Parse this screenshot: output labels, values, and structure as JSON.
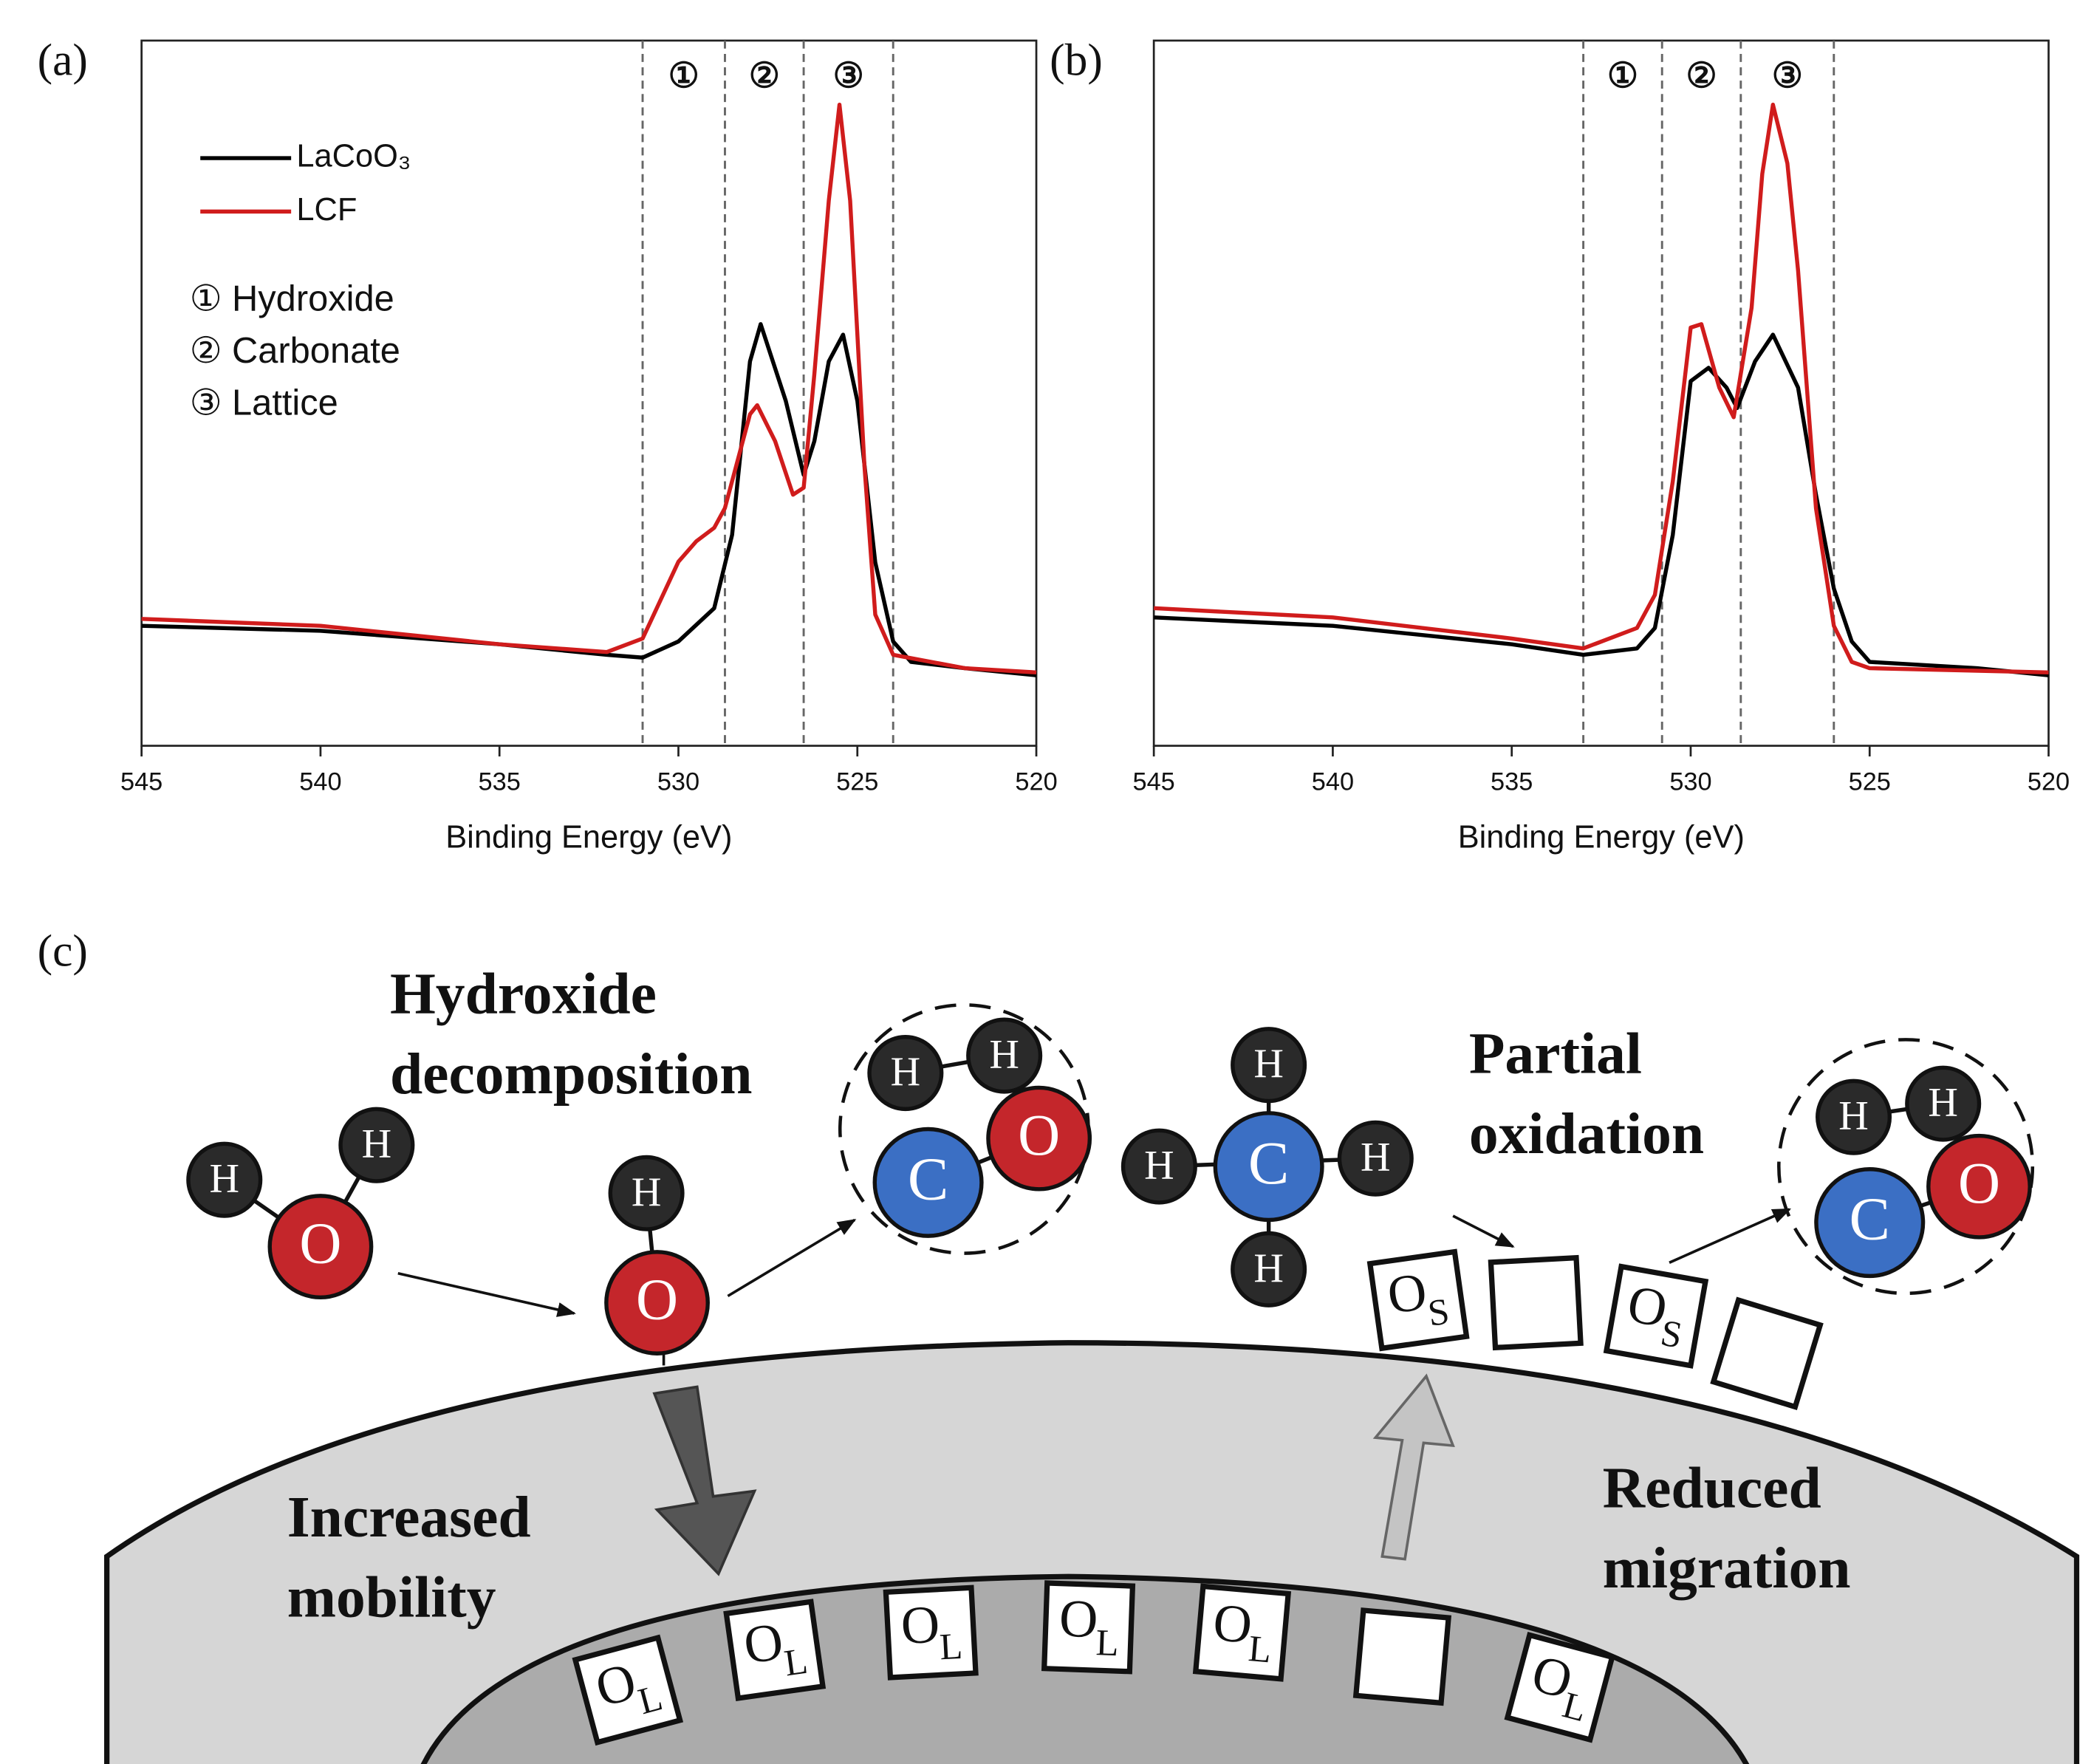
{
  "chart_data": [
    {
      "type": "line",
      "panel_label": "(a)",
      "x_label": "Binding Energy (eV)",
      "xlim": [
        545,
        520
      ],
      "xticks": [
        545,
        540,
        535,
        530,
        525,
        520
      ],
      "ylim": [
        0,
        100
      ],
      "region_lines": [
        531,
        528.7,
        526.5,
        524
      ],
      "region_labels": [
        "①",
        "②",
        "③"
      ],
      "legend_notes": [
        "① Hydroxide",
        "② Carbonate",
        "③ Lattice"
      ],
      "series": [
        {
          "name": "LaCoO₃",
          "color": "#000000",
          "x": [
            545,
            540,
            535,
            532,
            531,
            530,
            529,
            528.5,
            528,
            527.7,
            527,
            526.5,
            526.2,
            525.8,
            525.4,
            525,
            524.5,
            524,
            523.5,
            522,
            520
          ],
          "values": [
            17,
            16.3,
            14.4,
            12.9,
            12.5,
            14.8,
            19.5,
            29.9,
            54.5,
            59.8,
            48.9,
            38.4,
            43.2,
            54.5,
            58.3,
            48.9,
            26,
            14.8,
            11.9,
            11,
            10
          ]
        },
        {
          "name": "LCF",
          "color": "#d01c1c",
          "x": [
            545,
            540,
            535,
            532,
            531,
            530,
            529.5,
            529,
            528.7,
            528,
            527.8,
            527.3,
            526.8,
            526.5,
            526.2,
            525.8,
            525.5,
            525.2,
            524.8,
            524.5,
            524,
            522,
            520
          ],
          "values": [
            18,
            17,
            14.4,
            13.3,
            15.2,
            26.1,
            29,
            30.9,
            33.7,
            47,
            48.3,
            43.2,
            35.6,
            36.6,
            52.7,
            77.3,
            90.9,
            77.3,
            39.4,
            18.6,
            12.9,
            11,
            10.4
          ]
        }
      ]
    },
    {
      "type": "line",
      "panel_label": "(b)",
      "x_label": "Binding Energy (eV)",
      "xlim": [
        545,
        520
      ],
      "xticks": [
        545,
        540,
        535,
        530,
        525,
        520
      ],
      "ylim": [
        0,
        100
      ],
      "region_lines": [
        533,
        530.8,
        528.6,
        526
      ],
      "region_labels": [
        "①",
        "②",
        "③"
      ],
      "series": [
        {
          "color": "#000000",
          "x": [
            545,
            540,
            535,
            533,
            531.5,
            531,
            530.5,
            530,
            529.5,
            529,
            528.7,
            528.2,
            527.7,
            527,
            526.5,
            526,
            525.5,
            525,
            522,
            520
          ],
          "values": [
            18.2,
            17,
            14.4,
            12.9,
            13.8,
            16.7,
            29.9,
            51.7,
            53.6,
            50.8,
            47.9,
            54.5,
            58.3,
            50.8,
            35.6,
            22.3,
            14.8,
            11.9,
            11,
            10
          ]
        },
        {
          "color": "#d01c1c",
          "x": [
            545,
            540,
            535,
            533,
            531.5,
            531,
            530.5,
            530,
            529.7,
            529.2,
            528.8,
            528.3,
            528,
            527.7,
            527.3,
            527,
            526.5,
            526,
            525.5,
            525,
            520
          ],
          "values": [
            19.5,
            18.2,
            15.2,
            13.8,
            16.7,
            21.4,
            37.5,
            59.3,
            59.8,
            50.8,
            46.6,
            62.1,
            81.1,
            90.9,
            82.6,
            67.4,
            33.7,
            17,
            11.9,
            11,
            10.4
          ]
        }
      ]
    }
  ],
  "diagram": {
    "panel_label": "(c)",
    "hydroxide_decomposition": [
      "Hydroxide",
      "decomposition"
    ],
    "partial_oxidation": [
      "Partial",
      "oxidation"
    ],
    "increased_mobility": [
      "Increased",
      "mobility"
    ],
    "reduced_migration": [
      "Reduced",
      "migration"
    ],
    "symbols": {
      "hydrogen": "H",
      "oxygen": "O",
      "carbon": "C"
    },
    "site_oxygen": "O",
    "surface_subscript": "S",
    "lattice_subscript": "L"
  }
}
